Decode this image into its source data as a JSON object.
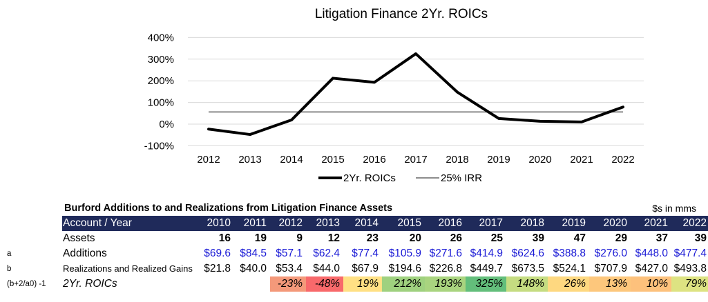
{
  "chart_data": {
    "type": "line",
    "title": "Litigation Finance 2Yr. ROICs",
    "x": [
      "2012",
      "2013",
      "2014",
      "2015",
      "2016",
      "2017",
      "2018",
      "2019",
      "2020",
      "2021",
      "2022"
    ],
    "y_ticks": [
      "400%",
      "300%",
      "200%",
      "100%",
      "0%",
      "-100%"
    ],
    "y_tick_values": [
      400,
      300,
      200,
      100,
      0,
      -100
    ],
    "ylim": [
      -100,
      400
    ],
    "grid": true,
    "legend_position": "bottom",
    "series": [
      {
        "name": "2Yr. ROICs",
        "values": [
          -23,
          -48,
          19,
          212,
          193,
          325,
          148,
          26,
          13,
          10,
          79
        ],
        "color": "#000000"
      },
      {
        "name": "25% IRR",
        "values": [
          56,
          56,
          56,
          56,
          56,
          56,
          56,
          56,
          56,
          56,
          56
        ],
        "color": "#8c8c8c"
      }
    ]
  },
  "table": {
    "title": "Burford Additions to and Realizations from Litigation Finance Assets",
    "units": "$s in mms",
    "header_label": "Account / Year",
    "years": [
      "2010",
      "2011",
      "2012",
      "2013",
      "2014",
      "2015",
      "2016",
      "2017",
      "2018",
      "2019",
      "2020",
      "2021",
      "2022"
    ],
    "rows": [
      {
        "key": "",
        "label": "Assets",
        "values": [
          "16",
          "19",
          "9",
          "12",
          "23",
          "20",
          "26",
          "25",
          "39",
          "47",
          "29",
          "37",
          "39"
        ]
      },
      {
        "key": "a",
        "label": "Additions",
        "values": [
          "$69.6",
          "$84.5",
          "$57.1",
          "$62.4",
          "$77.4",
          "$105.9",
          "$271.6",
          "$414.9",
          "$624.6",
          "$388.8",
          "$276.0",
          "$448.0",
          "$477.4"
        ]
      },
      {
        "key": "b",
        "label": "Realizations and Realized Gains",
        "values": [
          "$21.8",
          "$40.0",
          "$53.4",
          "$44.0",
          "$67.9",
          "$194.6",
          "$226.8",
          "$449.7",
          "$673.5",
          "$524.1",
          "$707.9",
          "$427.0",
          "$493.8"
        ]
      },
      {
        "key": "(b+2/a0) -1",
        "label": "2Yr. ROICs",
        "values": [
          "",
          "",
          "-23%",
          "-48%",
          "19%",
          "212%",
          "193%",
          "325%",
          "148%",
          "26%",
          "13%",
          "10%",
          "79%"
        ],
        "colors": [
          "",
          "",
          "#f4997a",
          "#f8696b",
          "#ffe084",
          "#9fd17f",
          "#a9d47f",
          "#63be7b",
          "#c5dc81",
          "#fed880",
          "#fdc77c",
          "#fdc17c",
          "#dde382"
        ]
      }
    ]
  }
}
